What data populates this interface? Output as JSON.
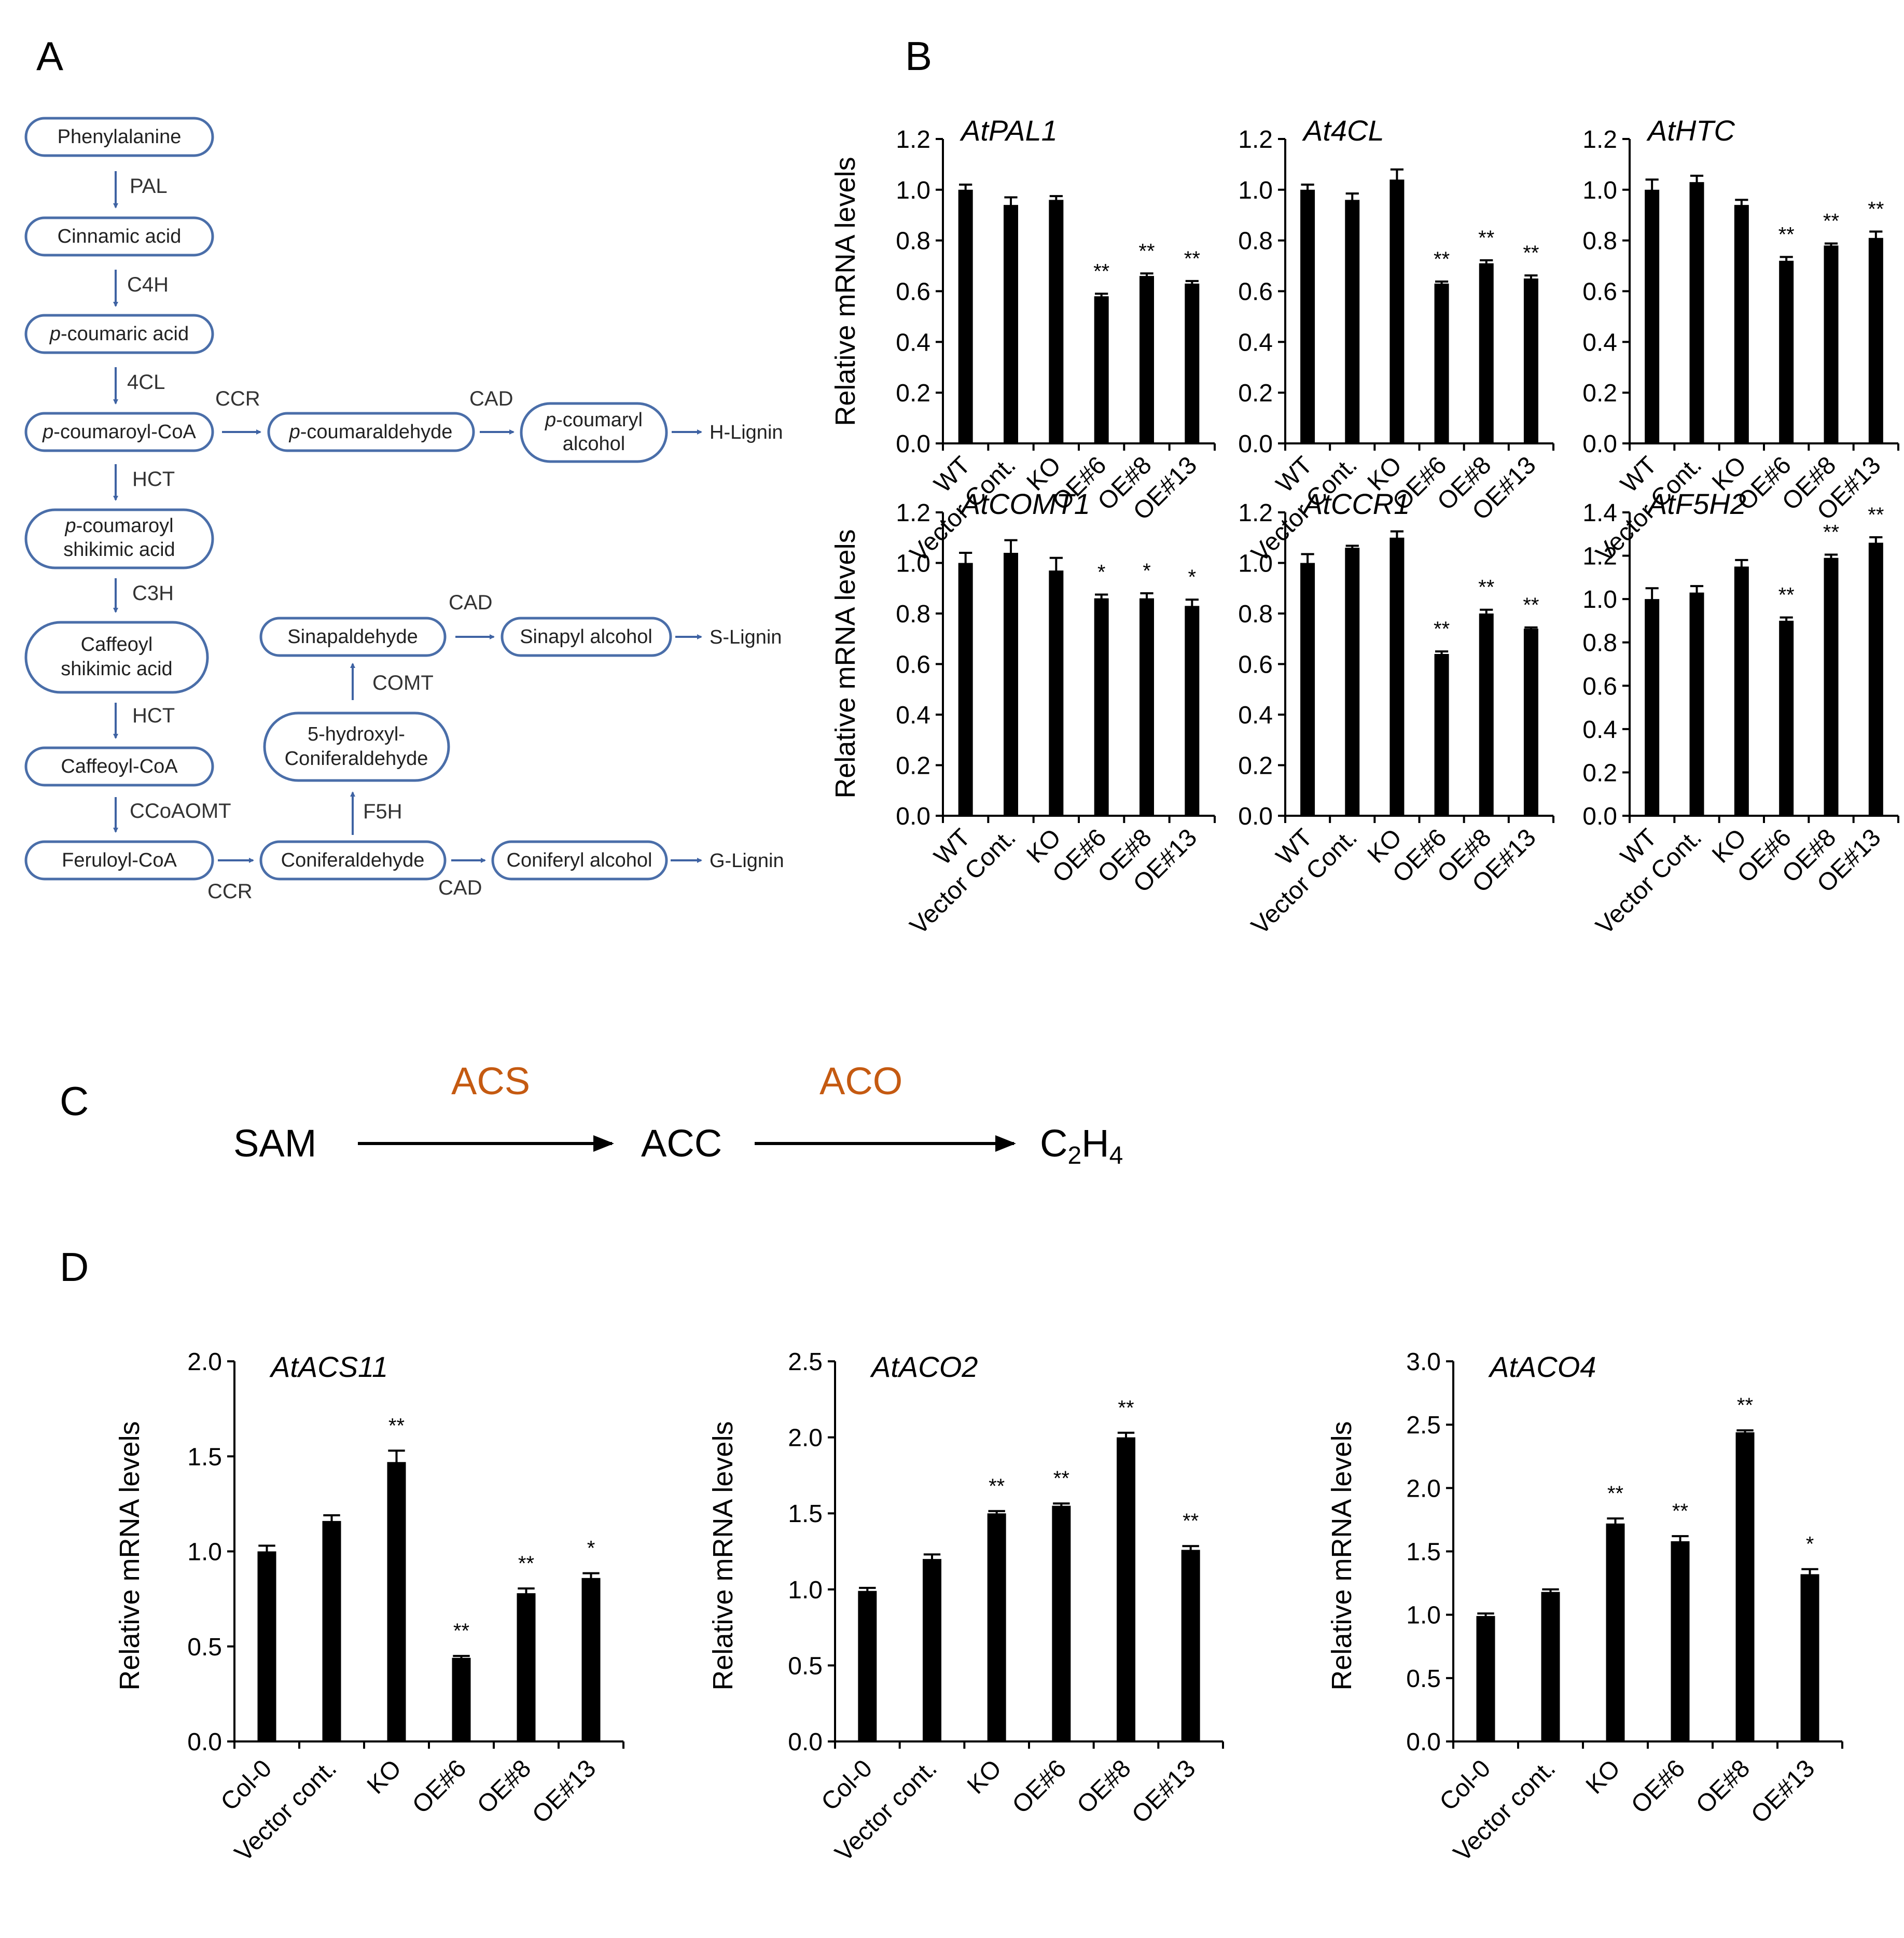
{
  "panels": {
    "A": "A",
    "B": "B",
    "C": "C",
    "D": "D"
  },
  "colors": {
    "pathway_line": "#3f63a3",
    "enzyme_orange": "#c55a11",
    "bar": "#000000"
  },
  "pathway": {
    "nodes": {
      "phe": "Phenylalanine",
      "cin": "Cinnamic acid",
      "pcoum_prefix": "p",
      "pcoum_rest": "-coumaric acid",
      "pcoa_prefix": "p",
      "pcoa_rest": "-coumaroyl-CoA",
      "pcald_prefix": "p",
      "pcald_rest": "-coumaraldehyde",
      "pcalc_line1_prefix": "p",
      "pcalc_line1_rest": "-coumaryl",
      "pcalc_line2": "alcohol",
      "pcsh_line1_prefix": "p",
      "pcsh_line1_rest": "-coumaroyl",
      "pcsh_line2": "shikimic acid",
      "caf_line1": "Caffeoyl",
      "caf_line2": "shikimic acid",
      "cafcoa": "Caffeoyl-CoA",
      "fer": "Feruloyl-CoA",
      "conald": "Coniferaldehyde",
      "conalc": "Coniferyl alcohol",
      "hcon_line1": "5-hydroxyl-",
      "hcon_line2": "Coniferaldehyde",
      "sinald": "Sinapaldehyde",
      "sinalc": "Sinapyl alcohol"
    },
    "products": {
      "h": "H-Lignin",
      "s": "S-Lignin",
      "g": "G-Lignin"
    },
    "enzymes": {
      "pal": "PAL",
      "c4h": "C4H",
      "cl4": "4CL",
      "hct1": "HCT",
      "c3h": "C3H",
      "hct2": "HCT",
      "ccoaomt": "CCoAOMT",
      "ccr_top": "CCR",
      "cad_top": "CAD",
      "ccr_bottom": "CCR",
      "cad_bottom": "CAD",
      "f5h": "F5H",
      "comt": "COMT",
      "cad_sin": "CAD"
    }
  },
  "reaction": {
    "sam": "SAM",
    "acc": "ACC",
    "c2h4_c": "C",
    "c2h4_sub1": "2",
    "c2h4_h": "H",
    "c2h4_sub2": "4",
    "acs": "ACS",
    "aco": "ACO"
  },
  "chart_data": [
    {
      "id": "pal1",
      "panel": "B",
      "type": "bar",
      "title": "AtPAL1",
      "ylabel": "Relative mRNA levels",
      "categories": [
        "WT",
        "Vector Cont.",
        "KO",
        "OE#6",
        "OE#8",
        "OE#13"
      ],
      "values": [
        1.0,
        0.94,
        0.96,
        0.58,
        0.66,
        0.63
      ],
      "errors": [
        0.02,
        0.03,
        0.015,
        0.01,
        0.01,
        0.01
      ],
      "significance": [
        "",
        "",
        "",
        "**",
        "**",
        "**"
      ],
      "ylim": [
        0,
        1.2
      ],
      "yticks": [
        "0.0",
        "0.2",
        "0.4",
        "0.6",
        "0.8",
        "1.0",
        "1.2"
      ]
    },
    {
      "id": "cl4",
      "panel": "B",
      "type": "bar",
      "title": "At4CL",
      "ylabel": "",
      "categories": [
        "WT",
        "Vector Cont.",
        "KO",
        "OE#6",
        "OE#8",
        "OE#13"
      ],
      "values": [
        1.0,
        0.96,
        1.04,
        0.63,
        0.71,
        0.65
      ],
      "errors": [
        0.02,
        0.025,
        0.04,
        0.008,
        0.012,
        0.012
      ],
      "significance": [
        "",
        "",
        "",
        "**",
        "**",
        "**"
      ],
      "ylim": [
        0,
        1.2
      ],
      "yticks": [
        "0.0",
        "0.2",
        "0.4",
        "0.6",
        "0.8",
        "1.0",
        "1.2"
      ]
    },
    {
      "id": "htc",
      "panel": "B",
      "type": "bar",
      "title": "AtHTC",
      "ylabel": "",
      "categories": [
        "WT",
        "Vector Cont.",
        "KO",
        "OE#6",
        "OE#8",
        "OE#13"
      ],
      "values": [
        1.0,
        1.03,
        0.94,
        0.72,
        0.78,
        0.81
      ],
      "errors": [
        0.04,
        0.025,
        0.02,
        0.015,
        0.008,
        0.025
      ],
      "significance": [
        "",
        "",
        "",
        "**",
        "**",
        "**"
      ],
      "ylim": [
        0,
        1.2
      ],
      "yticks": [
        "0.0",
        "0.2",
        "0.4",
        "0.6",
        "0.8",
        "1.0",
        "1.2"
      ]
    },
    {
      "id": "comt1",
      "panel": "B",
      "type": "bar",
      "title": "AtCOMT1",
      "ylabel": "Relative mRNA levels",
      "categories": [
        "WT",
        "Vector Cont.",
        "KO",
        "OE#6",
        "OE#8",
        "OE#13"
      ],
      "values": [
        1.0,
        1.04,
        0.97,
        0.86,
        0.86,
        0.83
      ],
      "errors": [
        0.04,
        0.05,
        0.05,
        0.015,
        0.02,
        0.025
      ],
      "significance": [
        "",
        "",
        "",
        "*",
        "*",
        "*"
      ],
      "ylim": [
        0,
        1.2
      ],
      "yticks": [
        "0.0",
        "0.2",
        "0.4",
        "0.6",
        "0.8",
        "1.0",
        "1.2"
      ]
    },
    {
      "id": "ccr1",
      "panel": "B",
      "type": "bar",
      "title": "AtCCR1",
      "ylabel": "",
      "categories": [
        "WT",
        "Vector Cont.",
        "KO",
        "OE#6",
        "OE#8",
        "OE#13"
      ],
      "values": [
        1.0,
        1.06,
        1.1,
        0.64,
        0.8,
        0.74
      ],
      "errors": [
        0.035,
        0.008,
        0.025,
        0.01,
        0.015,
        0.005
      ],
      "significance": [
        "",
        "",
        "",
        "**",
        "**",
        "**"
      ],
      "ylim": [
        0,
        1.2
      ],
      "yticks": [
        "0.0",
        "0.2",
        "0.4",
        "0.6",
        "0.8",
        "1.0",
        "1.2"
      ]
    },
    {
      "id": "f5h2",
      "panel": "B",
      "type": "bar",
      "title": "AtF5H2",
      "ylabel": "",
      "categories": [
        "WT",
        "Vector Cont.",
        "KO",
        "OE#6",
        "OE#8",
        "OE#13"
      ],
      "values": [
        1.0,
        1.03,
        1.15,
        0.9,
        1.19,
        1.26
      ],
      "errors": [
        0.05,
        0.03,
        0.03,
        0.015,
        0.015,
        0.025
      ],
      "significance": [
        "",
        "",
        "",
        "**",
        "**",
        "**"
      ],
      "ylim": [
        0,
        1.4
      ],
      "yticks": [
        "0.0",
        "0.2",
        "0.4",
        "0.6",
        "0.8",
        "1.0",
        "1.2",
        "1.4"
      ]
    },
    {
      "id": "acs11",
      "panel": "D",
      "type": "bar",
      "title": "AtACS11",
      "ylabel": "Relative mRNA levels",
      "categories": [
        "Col-0",
        "Vector cont.",
        "KO",
        "OE#6",
        "OE#8",
        "OE#13"
      ],
      "values": [
        1.0,
        1.16,
        1.47,
        0.44,
        0.78,
        0.86
      ],
      "errors": [
        0.03,
        0.03,
        0.06,
        0.01,
        0.025,
        0.025
      ],
      "significance": [
        "",
        "",
        "**",
        "**",
        "**",
        "*"
      ],
      "ylim": [
        0,
        2.0
      ],
      "yticks": [
        "0.0",
        "0.5",
        "1.0",
        "1.5",
        "2.0"
      ]
    },
    {
      "id": "aco2",
      "panel": "D",
      "type": "bar",
      "title": "AtACO2",
      "ylabel": "Relative mRNA levels",
      "categories": [
        "Col-0",
        "Vector cont.",
        "KO",
        "OE#6",
        "OE#8",
        "OE#13"
      ],
      "values": [
        0.99,
        1.2,
        1.5,
        1.55,
        2.0,
        1.26
      ],
      "errors": [
        0.02,
        0.03,
        0.015,
        0.015,
        0.03,
        0.025
      ],
      "significance": [
        "",
        "",
        "**",
        "**",
        "**",
        "**"
      ],
      "ylim": [
        0,
        2.5
      ],
      "yticks": [
        "0.0",
        "0.5",
        "1.0",
        "1.5",
        "2.0",
        "2.5"
      ]
    },
    {
      "id": "aco4",
      "panel": "D",
      "type": "bar",
      "title": "AtACO4",
      "ylabel": "Relative mRNA levels",
      "categories": [
        "Col-0",
        "Vector cont.",
        "KO",
        "OE#6",
        "OE#8",
        "OE#13"
      ],
      "values": [
        0.99,
        1.18,
        1.72,
        1.58,
        2.44,
        1.32
      ],
      "errors": [
        0.02,
        0.02,
        0.04,
        0.04,
        0.015,
        0.04
      ],
      "significance": [
        "",
        "",
        "**",
        "**",
        "**",
        "*"
      ],
      "ylim": [
        0,
        3.0
      ],
      "yticks": [
        "0.0",
        "0.5",
        "1.0",
        "1.5",
        "2.0",
        "2.5",
        "3.0"
      ]
    }
  ]
}
